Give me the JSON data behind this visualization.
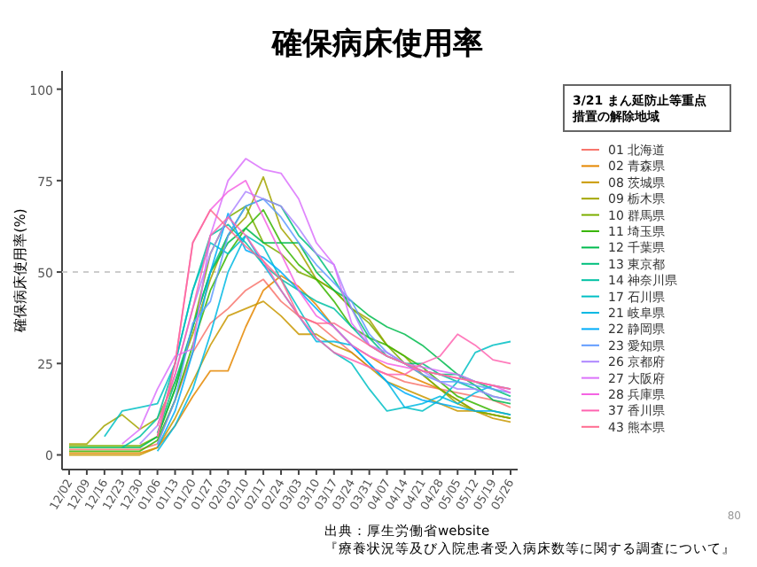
{
  "chart_data": {
    "type": "line",
    "title": "確保病床使用率",
    "ylabel": "確保病床使用率(%)",
    "legend_title": "3/21 まん延防止等重点措置の解除地域",
    "legend": "right",
    "categories": [
      "12/02",
      "12/09",
      "12/16",
      "12/23",
      "12/30",
      "01/06",
      "01/13",
      "01/20",
      "01/27",
      "02/03",
      "02/10",
      "02/17",
      "02/24",
      "03/03",
      "03/10",
      "03/17",
      "03/24",
      "03/31",
      "04/07",
      "04/14",
      "04/21",
      "04/28",
      "05/05",
      "05/12",
      "05/19",
      "05/26"
    ],
    "ylim": [
      -4,
      105
    ],
    "yticks": [
      0,
      25,
      50,
      75,
      100
    ],
    "ref_lines": [
      {
        "axis": "y",
        "value": 50,
        "color": "#cccccc",
        "line_style": "dashed"
      }
    ],
    "series": [
      {
        "name": "01 北海道",
        "color": "#f8766d",
        "values": [
          1.5,
          1.5,
          1.5,
          1.5,
          1.5,
          3,
          15,
          28,
          36,
          40,
          45,
          48,
          42,
          38,
          36,
          32,
          28,
          24,
          22,
          20,
          19,
          18,
          17,
          16,
          15,
          13
        ]
      },
      {
        "name": "02 青森県",
        "color": "#e58700",
        "values": [
          0.5,
          0.5,
          0.5,
          0.5,
          0.5,
          2,
          8,
          16,
          23,
          23,
          35,
          45,
          49,
          46,
          41,
          35,
          30,
          27,
          24,
          22,
          20,
          18,
          15,
          12,
          11,
          10
        ]
      },
      {
        "name": "08 茨城県",
        "color": "#c99800",
        "values": [
          0,
          0,
          0,
          0,
          0,
          2,
          10,
          20,
          30,
          38,
          40,
          42,
          38,
          33,
          33,
          30,
          28,
          24,
          20,
          18,
          16,
          14,
          12,
          12,
          10,
          9
        ]
      },
      {
        "name": "09 栃木県",
        "color": "#a3a500",
        "values": [
          3,
          3,
          8,
          11,
          7,
          10,
          20,
          33,
          48,
          60,
          65,
          76,
          62,
          56,
          48,
          45,
          40,
          37,
          30,
          27,
          22,
          18,
          14,
          12,
          11,
          10
        ]
      },
      {
        "name": "10 群馬県",
        "color": "#7cae00",
        "values": [
          2.5,
          2.5,
          2.5,
          2.5,
          2.5,
          5,
          18,
          35,
          55,
          65,
          68,
          58,
          55,
          50,
          48,
          45,
          40,
          36,
          30,
          25,
          22,
          18,
          15,
          12,
          11,
          10
        ]
      },
      {
        "name": "11 埼玉県",
        "color": "#39b600",
        "values": [
          1,
          1,
          1,
          1,
          1,
          4,
          15,
          30,
          45,
          55,
          62,
          67,
          58,
          52,
          48,
          42,
          35,
          32,
          30,
          27,
          24,
          20,
          16,
          14,
          12,
          11
        ]
      },
      {
        "name": "12 千葉県",
        "color": "#00bb4e",
        "values": [
          2,
          2,
          2,
          2,
          2,
          5,
          18,
          35,
          50,
          58,
          62,
          58,
          58,
          58,
          50,
          45,
          42,
          38,
          35,
          33,
          30,
          26,
          22,
          19,
          15,
          14
        ]
      },
      {
        "name": "13 東京都",
        "color": "#00bf7d",
        "values": [
          null,
          null,
          null,
          null,
          null,
          6,
          20,
          35,
          50,
          60,
          68,
          70,
          68,
          60,
          55,
          48,
          40,
          32,
          27,
          25,
          25,
          22,
          22,
          20,
          18,
          16
        ]
      },
      {
        "name": "14 神奈川県",
        "color": "#00c1a3",
        "values": [
          null,
          null,
          null,
          2,
          5,
          10,
          25,
          45,
          60,
          63,
          58,
          52,
          48,
          45,
          42,
          40,
          35,
          30,
          27,
          25,
          23,
          22,
          20,
          18,
          16,
          15
        ]
      },
      {
        "name": "17 石川県",
        "color": "#00bfc4",
        "values": [
          null,
          null,
          5,
          12,
          13,
          14,
          25,
          45,
          58,
          55,
          60,
          57,
          48,
          40,
          32,
          28,
          25,
          18,
          12,
          13,
          12,
          15,
          20,
          28,
          30,
          31
        ]
      },
      {
        "name": "21 岐阜県",
        "color": "#00b9e3",
        "values": [
          null,
          null,
          null,
          null,
          null,
          1,
          8,
          18,
          33,
          50,
          60,
          52,
          45,
          38,
          31,
          31,
          30,
          25,
          20,
          13,
          14,
          16,
          14,
          17,
          19,
          18
        ]
      },
      {
        "name": "22 静岡県",
        "color": "#00adfa",
        "values": [
          null,
          null,
          null,
          null,
          null,
          2,
          12,
          28,
          50,
          66,
          56,
          54,
          50,
          45,
          40,
          35,
          30,
          25,
          20,
          17,
          15,
          14,
          13,
          12,
          12,
          11
        ]
      },
      {
        "name": "23 愛知県",
        "color": "#619cff",
        "values": [
          null,
          null,
          null,
          null,
          null,
          3,
          15,
          36,
          42,
          60,
          68,
          70,
          65,
          58,
          52,
          47,
          42,
          33,
          28,
          25,
          22,
          20,
          20,
          19,
          18,
          17
        ]
      },
      {
        "name": "26 京都府",
        "color": "#ae87ff",
        "values": [
          null,
          null,
          null,
          null,
          3,
          8,
          22,
          40,
          55,
          65,
          72,
          70,
          68,
          62,
          55,
          52,
          40,
          30,
          28,
          25,
          23,
          20,
          18,
          18,
          16,
          15
        ]
      },
      {
        "name": "27 大阪府",
        "color": "#db72fb",
        "values": [
          null,
          null,
          null,
          3,
          7,
          18,
          27,
          29,
          60,
          75,
          81,
          78,
          77,
          70,
          58,
          52,
          36,
          30,
          27,
          25,
          24,
          23,
          22,
          20,
          19,
          18
        ]
      },
      {
        "name": "28 兵庫県",
        "color": "#f564e3",
        "values": [
          null,
          null,
          null,
          null,
          null,
          5,
          25,
          58,
          67,
          72,
          75,
          65,
          55,
          45,
          38,
          35,
          30,
          27,
          25,
          24,
          23,
          22,
          21,
          20,
          19,
          17
        ]
      },
      {
        "name": "37 香川県",
        "color": "#ff64b0",
        "values": [
          null,
          null,
          null,
          null,
          null,
          8,
          22,
          40,
          60,
          65,
          60,
          53,
          45,
          38,
          32,
          28,
          26,
          24,
          22,
          22,
          25,
          27,
          33,
          30,
          26,
          25
        ]
      },
      {
        "name": "43 熊本県",
        "color": "#ff6c91",
        "values": [
          null,
          null,
          null,
          null,
          null,
          5,
          25,
          58,
          67,
          62,
          57,
          53,
          48,
          38,
          36,
          36,
          33,
          30,
          27,
          25,
          23,
          22,
          21,
          20,
          19,
          18
        ]
      }
    ],
    "annotations": [
      "出典：厚生労働省website",
      "『療養状況等及び入院患者受入病床数等に関する調査について』",
      "80"
    ]
  }
}
